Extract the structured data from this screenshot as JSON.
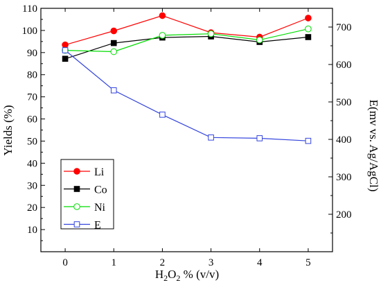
{
  "chart_data": {
    "type": "line",
    "x": [
      0,
      1,
      2,
      3,
      4,
      5
    ],
    "xlabel": {
      "main": "H",
      "sub": "2",
      "main2": "O",
      "sub2": "2",
      "rest": " % (v/v)"
    },
    "ylabel_left": "Yields (%)",
    "ylabel_right": "E(mv vs. Ag/AgCl)",
    "xlim": [
      -0.5,
      5.5
    ],
    "ylim_left": [
      0,
      110
    ],
    "ylim_right": [
      100,
      750
    ],
    "xticks": [
      "0",
      "1",
      "2",
      "3",
      "4",
      "5"
    ],
    "yticks_left": [
      "10",
      "20",
      "30",
      "40",
      "50",
      "60",
      "70",
      "80",
      "90",
      "100",
      "110"
    ],
    "yticks_right": [
      "200",
      "300",
      "400",
      "500",
      "600",
      "700"
    ],
    "grid": false,
    "legend_position": "bottom-left",
    "series": [
      {
        "name": "Li",
        "axis": "left",
        "color": "#ff0000",
        "marker": "filled-circle",
        "values": [
          93.5,
          99.8,
          106.7,
          99.0,
          97.0,
          105.6
        ]
      },
      {
        "name": "Co",
        "axis": "left",
        "color": "#000000",
        "marker": "filled-square",
        "values": [
          87.2,
          94.3,
          96.8,
          97.3,
          94.8,
          97.0
        ]
      },
      {
        "name": "Ni",
        "axis": "left",
        "color": "#00dd00",
        "marker": "open-circle",
        "values": [
          91.0,
          90.4,
          97.8,
          98.5,
          95.7,
          100.7
        ]
      },
      {
        "name": "E",
        "axis": "right",
        "color": "#3344dd",
        "marker": "open-square",
        "values": [
          638,
          531,
          466,
          405,
          403,
          396
        ]
      }
    ]
  }
}
